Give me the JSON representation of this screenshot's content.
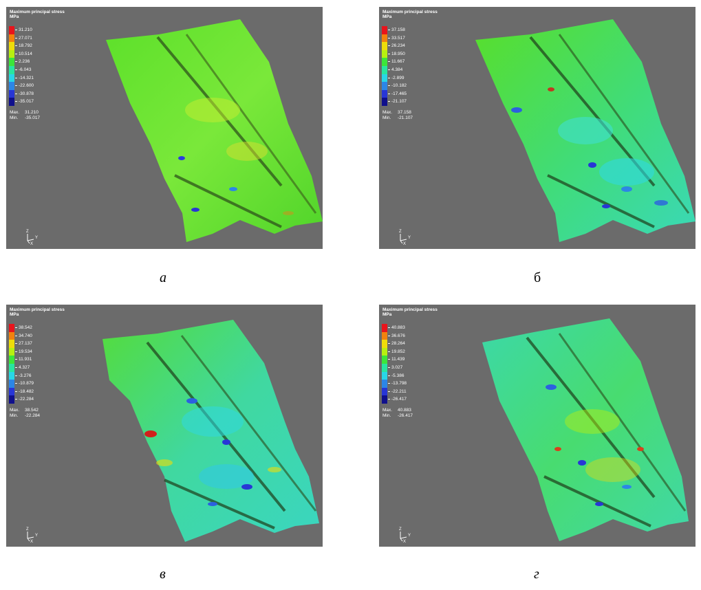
{
  "colors": {
    "background": "#6b6b6b",
    "legend": [
      "#e8141c",
      "#f2820e",
      "#eedd0a",
      "#b7f010",
      "#3ce63a",
      "#28e6a0",
      "#28d6e6",
      "#2c86e6",
      "#2836d6",
      "#10108c"
    ]
  },
  "panels": [
    {
      "title": "Maximum principal stress",
      "unit": "MPa",
      "legend_values": [
        "31.210",
        "27.071",
        "18.792",
        "10.514",
        "2.236",
        "-6.043",
        "-14.321",
        "-22.600",
        "-30.878",
        "-35.017"
      ],
      "max_label": "Max.",
      "max_value": "31.210",
      "min_label": "Min.",
      "min_value": "-35.017",
      "axis_z": "Z",
      "axis_y": "Y",
      "axis_x": "X",
      "caption": "а"
    },
    {
      "title": "Maximum principal stress",
      "unit": "MPa",
      "legend_values": [
        "37.158",
        "33.517",
        "26.234",
        "18.950",
        "11.667",
        "4.384",
        "-2.899",
        "-10.182",
        "-17.465",
        "-21.107"
      ],
      "max_label": "Max.",
      "max_value": "37.158",
      "min_label": "Min.",
      "min_value": "-21.107",
      "axis_z": "Z",
      "axis_y": "Y",
      "axis_x": "X",
      "caption": "б"
    },
    {
      "title": "Maximum principal stress",
      "unit": "MPa",
      "legend_values": [
        "38.542",
        "34.740",
        "27.137",
        "19.534",
        "11.931",
        "4.327",
        "-3.276",
        "-10.879",
        "-18.482",
        "-22.284"
      ],
      "max_label": "Max.",
      "max_value": "38.542",
      "min_label": "Min.",
      "min_value": "-22.284",
      "axis_z": "Z",
      "axis_y": "Y",
      "axis_x": "X",
      "caption": "в"
    },
    {
      "title": "Maximum principal stress",
      "unit": "MPa",
      "legend_values": [
        "40.883",
        "36.676",
        "28.264",
        "19.852",
        "11.439",
        "3.027",
        "-5.386",
        "-13.798",
        "-22.211",
        "-26.417"
      ],
      "max_label": "Max.",
      "max_value": "40.883",
      "min_label": "Min.",
      "min_value": "-26.417",
      "axis_z": "Z",
      "axis_y": "Y",
      "axis_x": "X",
      "caption": "г"
    }
  ]
}
